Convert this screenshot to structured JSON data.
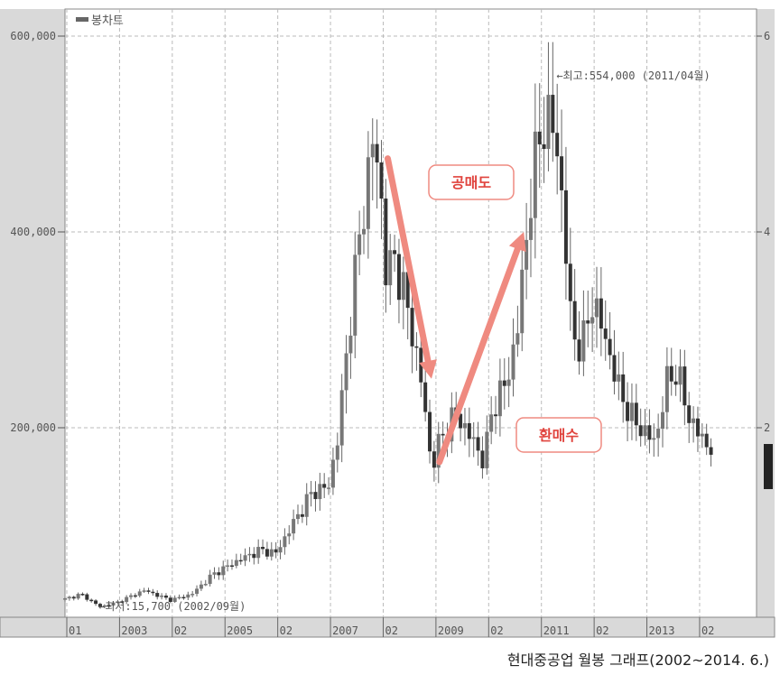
{
  "chart_data": {
    "type": "candlestick",
    "legend": {
      "label": "봉차트",
      "placement": "top-left"
    },
    "y_ticks": [
      "600,000",
      "400,000",
      "200,000"
    ],
    "y_tick_values": [
      600000,
      400000,
      200000
    ],
    "right_axis_ticks": [
      "6",
      "4",
      "2"
    ],
    "ylim": [
      0,
      620000
    ],
    "xlim": [
      2002.0,
      2014.6
    ],
    "grid": true,
    "x_ticks": [
      {
        "label": "01",
        "t": 2002.0
      },
      {
        "label": "2003",
        "t": 2003.0
      },
      {
        "label": "02",
        "t": 2004.0
      },
      {
        "label": "2005",
        "t": 2005.0
      },
      {
        "label": "02",
        "t": 2006.0
      },
      {
        "label": "2007",
        "t": 2007.0
      },
      {
        "label": "02",
        "t": 2008.0
      },
      {
        "label": "2009",
        "t": 2009.0
      },
      {
        "label": "02",
        "t": 2010.0
      },
      {
        "label": "2011",
        "t": 2011.0
      },
      {
        "label": "02",
        "t": 2012.0
      },
      {
        "label": "2013",
        "t": 2013.0
      },
      {
        "label": "02",
        "t": 2014.0
      }
    ],
    "annotations": {
      "high": {
        "text": "←최고:554,000 (2011/04월)",
        "t": 2011.25,
        "value": 554000
      },
      "low": {
        "text": "←최저:15,700 (2002/09월)",
        "t": 2002.67,
        "value": 15700
      }
    },
    "callouts": [
      {
        "text": "공매도",
        "from": {
          "t": 2008.12,
          "value": 475000
        },
        "to": {
          "t": 2008.95,
          "value": 250000
        }
      },
      {
        "text": "환매수",
        "from": {
          "t": 2009.1,
          "value": 165000
        },
        "to": {
          "t": 2010.7,
          "value": 400000
        }
      }
    ],
    "closes": [
      {
        "t": 2002.0,
        "value": 25000
      },
      {
        "t": 2002.3,
        "value": 30000
      },
      {
        "t": 2002.67,
        "value": 17000
      },
      {
        "t": 2003.0,
        "value": 22000
      },
      {
        "t": 2003.5,
        "value": 34000
      },
      {
        "t": 2003.8,
        "value": 28000
      },
      {
        "t": 2004.0,
        "value": 24000
      },
      {
        "t": 2004.4,
        "value": 30000
      },
      {
        "t": 2004.8,
        "value": 50000
      },
      {
        "t": 2005.3,
        "value": 65000
      },
      {
        "t": 2005.7,
        "value": 75000
      },
      {
        "t": 2006.0,
        "value": 72000
      },
      {
        "t": 2006.3,
        "value": 100000
      },
      {
        "t": 2006.7,
        "value": 135000
      },
      {
        "t": 2007.0,
        "value": 140000
      },
      {
        "t": 2007.2,
        "value": 200000
      },
      {
        "t": 2007.4,
        "value": 310000
      },
      {
        "t": 2007.6,
        "value": 400000
      },
      {
        "t": 2007.85,
        "value": 500000
      },
      {
        "t": 2008.0,
        "value": 430000
      },
      {
        "t": 2008.1,
        "value": 350000
      },
      {
        "t": 2008.25,
        "value": 375000
      },
      {
        "t": 2008.5,
        "value": 320000
      },
      {
        "t": 2008.75,
        "value": 250000
      },
      {
        "t": 2008.95,
        "value": 160000
      },
      {
        "t": 2009.1,
        "value": 185000
      },
      {
        "t": 2009.4,
        "value": 215000
      },
      {
        "t": 2009.7,
        "value": 190000
      },
      {
        "t": 2009.95,
        "value": 165000
      },
      {
        "t": 2010.1,
        "value": 220000
      },
      {
        "t": 2010.4,
        "value": 250000
      },
      {
        "t": 2010.6,
        "value": 310000
      },
      {
        "t": 2010.85,
        "value": 450000
      },
      {
        "t": 2011.1,
        "value": 520000
      },
      {
        "t": 2011.3,
        "value": 500000
      },
      {
        "t": 2011.45,
        "value": 420000
      },
      {
        "t": 2011.6,
        "value": 300000
      },
      {
        "t": 2011.8,
        "value": 280000
      },
      {
        "t": 2012.0,
        "value": 330000
      },
      {
        "t": 2012.2,
        "value": 300000
      },
      {
        "t": 2012.5,
        "value": 240000
      },
      {
        "t": 2012.75,
        "value": 210000
      },
      {
        "t": 2013.0,
        "value": 195000
      },
      {
        "t": 2013.2,
        "value": 185000
      },
      {
        "t": 2013.4,
        "value": 245000
      },
      {
        "t": 2013.6,
        "value": 260000
      },
      {
        "t": 2013.8,
        "value": 215000
      },
      {
        "t": 2014.0,
        "value": 195000
      },
      {
        "t": 2014.2,
        "value": 180000
      }
    ]
  },
  "caption": "현대중공업 월봉 그래프(2002~2014. 6.)"
}
